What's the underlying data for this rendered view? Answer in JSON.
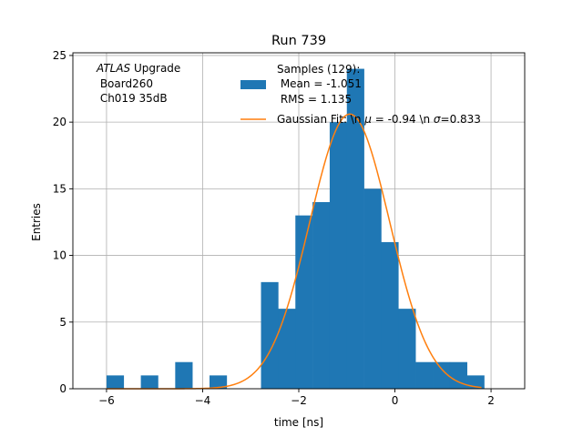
{
  "chart_data": {
    "type": "bar",
    "title": "Run 739",
    "xlabel": "time [ns]",
    "ylabel": "Entries",
    "xlim": [
      -6.7,
      2.7
    ],
    "ylim": [
      0,
      25.2
    ],
    "grid": true,
    "x_ticks": [
      -6,
      -4,
      -2,
      0,
      2
    ],
    "x_tick_labels": [
      "−6",
      "−4",
      "−2",
      "0",
      "2"
    ],
    "y_ticks": [
      0,
      5,
      10,
      15,
      20,
      25
    ],
    "y_tick_labels": [
      "0",
      "5",
      "10",
      "15",
      "20",
      "25"
    ],
    "bar_color": "#1f77b4",
    "fit_color": "#ff7f0e",
    "bin_edges": [
      -6.0,
      -5.643,
      -5.286,
      -4.929,
      -4.571,
      -4.214,
      -3.857,
      -3.5,
      -3.143,
      -2.786,
      -2.429,
      -2.071,
      -1.714,
      -1.357,
      -1.0,
      -0.643,
      -0.286,
      0.071,
      0.429,
      0.786,
      1.143,
      1.5,
      1.857
    ],
    "counts": [
      1,
      0,
      1,
      0,
      2,
      0,
      1,
      0,
      0,
      8,
      6,
      13,
      14,
      20,
      24,
      15,
      11,
      6,
      2,
      2,
      2,
      1
    ],
    "fit": {
      "mu": -0.94,
      "sigma": 0.833,
      "amplitude": 20.6,
      "x_range": [
        -6.0,
        1.8
      ]
    },
    "annotation": {
      "line1_italic": "ATLAS",
      "line1_rest": " Upgrade",
      "line2": " Board260",
      "line3": " Ch019 35dB"
    },
    "legend": {
      "placement": "top-center",
      "histogram_lines": [
        "Samples (129):",
        " Mean = -1.051",
        " RMS = 1.135"
      ],
      "fit_label_prefix": "Gaussian Fit: \\n ",
      "fit_label_mu_symbol": "μ",
      "fit_label_middle": " = -0.94 \\n ",
      "fit_label_sigma_symbol": "σ",
      "fit_label_suffix": "=0.833"
    }
  }
}
